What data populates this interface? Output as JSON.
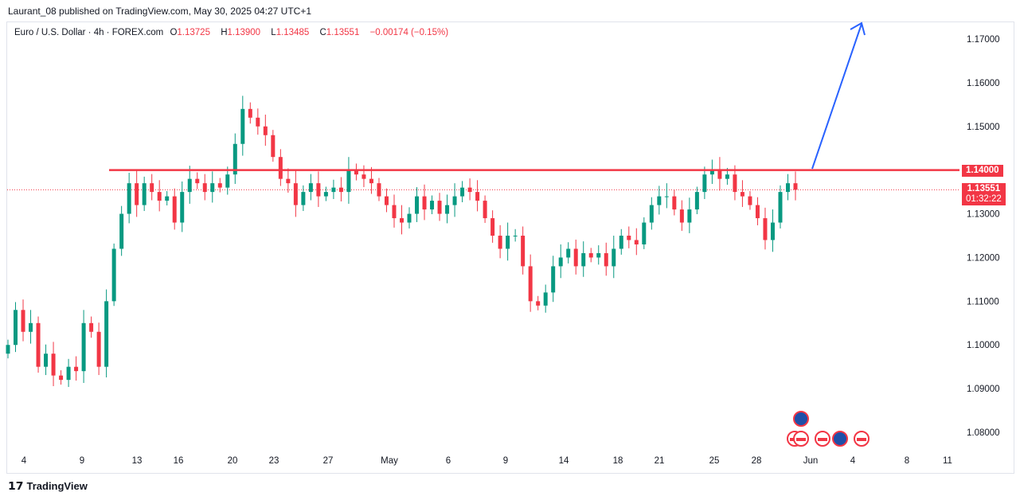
{
  "header": {
    "published": "Laurant_08 published on TradingView.com, May 30, 2025 04:27 UTC+1"
  },
  "legend": {
    "symbol": "Euro / U.S. Dollar · 4h · FOREX.com",
    "o_label": "O",
    "o": "1.13725",
    "h_label": "H",
    "h": "1.13900",
    "l_label": "L",
    "l": "1.13485",
    "c_label": "C",
    "c": "1.13551",
    "change": "−0.00174 (−0.15%)"
  },
  "price_labels": {
    "resistance": "1.14000",
    "last_price": "1.13551",
    "countdown": "01:32:22"
  },
  "footer": {
    "brand": "TradingView"
  },
  "colors": {
    "up": "#089981",
    "down": "#f23645",
    "resistance": "#f23645",
    "arrow": "#2962ff"
  },
  "chart_data": {
    "type": "candlestick",
    "title": "Euro / U.S. Dollar · 4h · FOREX.com",
    "ylim": [
      1.075,
      1.175
    ],
    "y_ticks": [
      "1.17000",
      "1.16000",
      "1.15000",
      "1.14000",
      "1.13000",
      "1.12000",
      "1.11000",
      "1.10000",
      "1.09000",
      "1.08000"
    ],
    "x_ticks": [
      "4",
      "9",
      "13",
      "16",
      "20",
      "23",
      "27",
      "May",
      "6",
      "9",
      "14",
      "18",
      "21",
      "25",
      "28",
      "Jun",
      "4",
      "8",
      "11"
    ],
    "closes": [
      1.1,
      1.108,
      1.103,
      1.105,
      1.095,
      1.098,
      1.093,
      1.092,
      1.095,
      1.094,
      1.105,
      1.103,
      1.095,
      1.11,
      1.122,
      1.13,
      1.137,
      1.132,
      1.137,
      1.135,
      1.133,
      1.134,
      1.128,
      1.135,
      1.138,
      1.137,
      1.135,
      1.137,
      1.136,
      1.139,
      1.146,
      1.154,
      1.152,
      1.15,
      1.148,
      1.143,
      1.138,
      1.137,
      1.132,
      1.135,
      1.137,
      1.134,
      1.135,
      1.136,
      1.135,
      1.14,
      1.139,
      1.138,
      1.137,
      1.134,
      1.132,
      1.129,
      1.128,
      1.13,
      1.134,
      1.131,
      1.133,
      1.13,
      1.132,
      1.134,
      1.136,
      1.135,
      1.133,
      1.129,
      1.125,
      1.122,
      1.125,
      1.125,
      1.118,
      1.11,
      1.109,
      1.112,
      1.118,
      1.12,
      1.122,
      1.118,
      1.121,
      1.12,
      1.121,
      1.118,
      1.122,
      1.125,
      1.124,
      1.123,
      1.128,
      1.132,
      1.134,
      1.134,
      1.131,
      1.128,
      1.131,
      1.135,
      1.139,
      1.14,
      1.138,
      1.139,
      1.135,
      1.134,
      1.132,
      1.129,
      1.124,
      1.128,
      1.135,
      1.137,
      1.13551
    ],
    "resistance_level": 1.14,
    "last_price": 1.13551,
    "annotation": "projection arrow up from 1.14 breakout toward ~1.173"
  }
}
